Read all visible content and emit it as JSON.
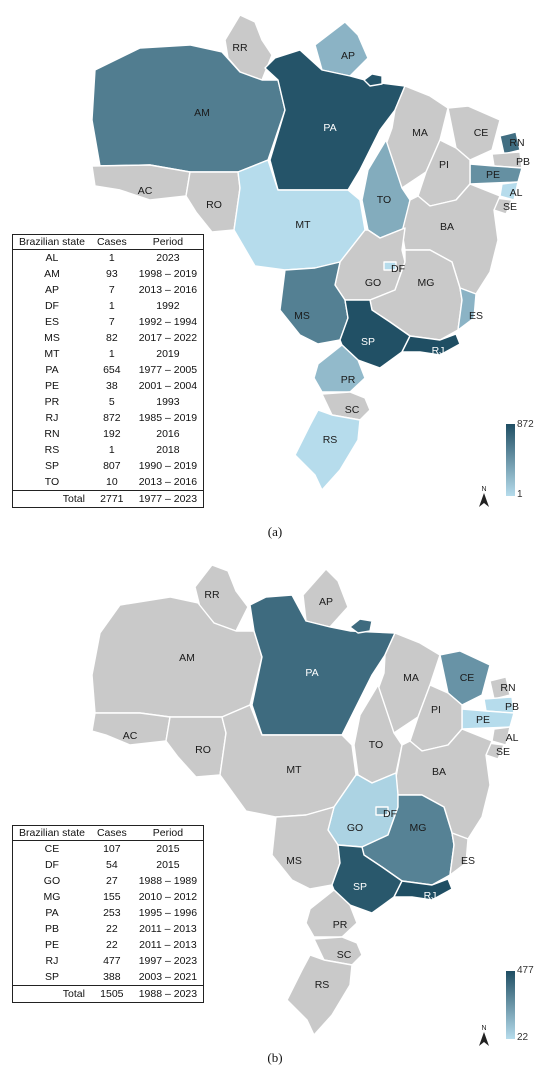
{
  "colors": {
    "no_data": "#c9c9c9",
    "scale_low": "#b6dcec",
    "scale_high": "#1f4e63"
  },
  "panel_a": {
    "caption": "(a)",
    "table": {
      "headers": [
        "Brazilian state",
        "Cases",
        "Period"
      ],
      "rows": [
        {
          "state": "AL",
          "cases": "1",
          "period": "2023"
        },
        {
          "state": "AM",
          "cases": "93",
          "period": "1998 – 2019"
        },
        {
          "state": "AP",
          "cases": "7",
          "period": "2013 – 2016"
        },
        {
          "state": "DF",
          "cases": "1",
          "period": "1992"
        },
        {
          "state": "ES",
          "cases": "7",
          "period": "1992 – 1994"
        },
        {
          "state": "MS",
          "cases": "82",
          "period": "2017 – 2022"
        },
        {
          "state": "MT",
          "cases": "1",
          "period": "2019"
        },
        {
          "state": "PA",
          "cases": "654",
          "period": "1977 – 2005"
        },
        {
          "state": "PE",
          "cases": "38",
          "period": "2001 – 2004"
        },
        {
          "state": "PR",
          "cases": "5",
          "period": "1993"
        },
        {
          "state": "RJ",
          "cases": "872",
          "period": "1985 – 2019"
        },
        {
          "state": "RN",
          "cases": "192",
          "period": "2016"
        },
        {
          "state": "RS",
          "cases": "1",
          "period": "2018"
        },
        {
          "state": "SP",
          "cases": "807",
          "period": "1990 – 2019"
        },
        {
          "state": "TO",
          "cases": "10",
          "period": "2013 – 2016"
        }
      ],
      "total": {
        "label": "Total",
        "cases": "2771",
        "period": "1977 – 2023"
      }
    },
    "scale": {
      "max": "872",
      "min": "1"
    },
    "north": "N"
  },
  "panel_b": {
    "caption": "(b)",
    "table": {
      "headers": [
        "Brazilian state",
        "Cases",
        "Period"
      ],
      "rows": [
        {
          "state": "CE",
          "cases": "107",
          "period": "2015"
        },
        {
          "state": "DF",
          "cases": "54",
          "period": "2015"
        },
        {
          "state": "GO",
          "cases": "27",
          "period": "1988 – 1989"
        },
        {
          "state": "MG",
          "cases": "155",
          "period": "2010 – 2012"
        },
        {
          "state": "PA",
          "cases": "253",
          "period": "1995 – 1996"
        },
        {
          "state": "PB",
          "cases": "22",
          "period": "2011 – 2013"
        },
        {
          "state": "PE",
          "cases": "22",
          "period": "2011 – 2013"
        },
        {
          "state": "RJ",
          "cases": "477",
          "period": "1997 – 2023"
        },
        {
          "state": "SP",
          "cases": "388",
          "period": "2003 – 2021"
        }
      ],
      "total": {
        "label": "Total",
        "cases": "1505",
        "period": "1988 – 2023"
      }
    },
    "scale": {
      "max": "477",
      "min": "22"
    },
    "north": "N"
  },
  "state_labels": [
    "RR",
    "AP",
    "AM",
    "PA",
    "MA",
    "CE",
    "RN",
    "PB",
    "PE",
    "AL",
    "SE",
    "PI",
    "AC",
    "RO",
    "MT",
    "TO",
    "BA",
    "DF",
    "GO",
    "MG",
    "ES",
    "MS",
    "SP",
    "RJ",
    "PR",
    "SC",
    "RS"
  ]
}
